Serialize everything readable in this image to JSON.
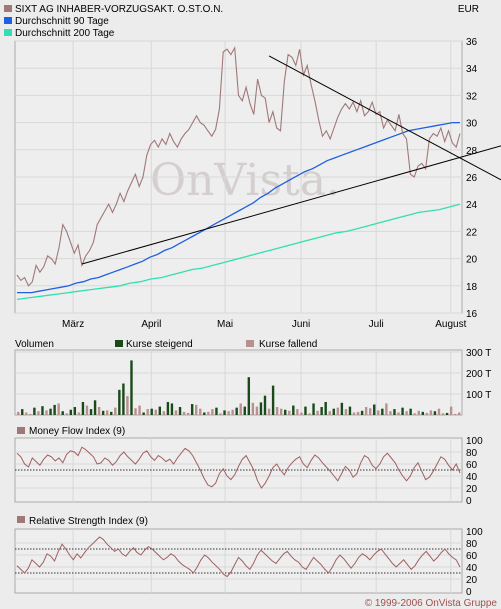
{
  "header": {
    "currency": "EUR",
    "legend": [
      {
        "label": "SIXT AG INHABER-VORZUGSAKT. O.ST.O.N.",
        "color": "#a07878"
      },
      {
        "label": "Durchschnitt 90 Tage",
        "color": "#1f5fe0"
      },
      {
        "label": "Durchschnitt 200 Tage",
        "color": "#30e0b0"
      }
    ]
  },
  "watermark": "OnVista.",
  "copyright": "© 1999-2006 OnVista Gruppe",
  "colors": {
    "price": "#a07878",
    "ma90": "#1f5fe0",
    "ma200": "#30e0b0",
    "vol_up": "#1a4a1a",
    "vol_down": "#b89090",
    "indicator": "#a06060",
    "trend": "#000000"
  },
  "chart_data": [
    {
      "type": "line",
      "title": "SIXT AG INHABER-VORZUGSAKT. O.ST.O.N.",
      "ylabel": "EUR",
      "ylim": [
        16,
        36
      ],
      "yticks": [
        16,
        18,
        20,
        22,
        24,
        26,
        28,
        30,
        32,
        34,
        36
      ],
      "xticks": [
        "März",
        "April",
        "Mai",
        "Juni",
        "Juli",
        "August"
      ],
      "series": [
        {
          "name": "SIXT AG INHABER-VORZUGSAKT. O.ST.O.N.",
          "values": [
            18.8,
            18.4,
            18.6,
            18.0,
            18.3,
            19.5,
            19.0,
            19.4,
            20.2,
            20.0,
            19.6,
            20.8,
            22.5,
            22.0,
            21.2,
            20.4,
            21.0,
            19.5,
            20.2,
            20.6,
            21.2,
            22.5,
            23.0,
            23.5,
            24.0,
            23.4,
            24.0,
            24.8,
            24.2,
            25.0,
            25.6,
            26.2,
            25.3,
            26.0,
            27.6,
            28.4,
            28.7,
            28.2,
            28.8,
            28.4,
            29.2,
            28.6,
            28.2,
            28.8,
            29.2,
            29.5,
            30.0,
            30.5,
            30.0,
            29.8,
            29.4,
            29.0,
            29.5,
            31.0,
            35.2,
            35.4,
            35.0,
            35.5,
            32.0,
            31.6,
            32.6,
            31.4,
            30.6,
            33.2,
            32.0,
            31.8,
            30.0,
            30.8,
            29.6,
            29.4,
            33.0,
            35.0,
            34.8,
            34.2,
            35.4,
            33.5,
            34.2,
            32.8,
            31.6,
            30.2,
            29.0,
            29.4,
            28.8,
            29.6,
            30.4,
            31.0,
            31.4,
            31.0,
            31.5,
            30.8,
            31.6,
            30.5,
            30.8,
            31.5,
            30.6,
            30.8,
            29.6,
            30.2,
            29.8,
            29.4,
            30.6,
            29.2,
            28.8,
            26.2,
            26.0,
            26.8,
            27.0,
            26.6,
            28.8,
            29.2,
            29.0,
            29.6,
            28.6,
            29.4,
            28.5,
            28.2,
            29.2
          ]
        },
        {
          "name": "Durchschnitt 90 Tage",
          "values": [
            17.5,
            17.5,
            17.5,
            17.6,
            17.7,
            17.8,
            17.9,
            18.0,
            18.2,
            18.3,
            18.5,
            18.6,
            18.8,
            19.0,
            19.2,
            19.4,
            19.6,
            19.8,
            20.1,
            20.3,
            20.6,
            20.8,
            21.1,
            21.4,
            21.7,
            22.0,
            22.3,
            22.6,
            22.9,
            23.2,
            23.5,
            23.8,
            24.1,
            24.5,
            24.8,
            25.2,
            25.5,
            25.8,
            26.1,
            26.4,
            26.6,
            26.9,
            27.2,
            27.4,
            27.6,
            27.8,
            28.0,
            28.2,
            28.4,
            28.6,
            28.8,
            29.0,
            29.2,
            29.4,
            29.5,
            29.6,
            29.7,
            29.8,
            29.9,
            30.0,
            30.0
          ]
        },
        {
          "name": "Durchschnitt 200 Tage",
          "values": [
            17.0,
            17.1,
            17.2,
            17.3,
            17.4,
            17.5,
            17.6,
            17.7,
            17.8,
            17.9,
            18.0,
            18.2,
            18.3,
            18.5,
            18.6,
            18.8,
            19.0,
            19.2,
            19.3,
            19.5,
            19.7,
            19.9,
            20.1,
            20.3,
            20.5,
            20.7,
            20.9,
            21.1,
            21.3,
            21.5,
            21.7,
            21.9,
            22.0,
            22.2,
            22.4,
            22.6,
            22.8,
            23.0,
            23.2,
            23.4,
            23.5,
            23.6,
            23.8,
            24.0
          ]
        }
      ],
      "trendlines": [
        {
          "from": {
            "x_index": 17,
            "y": 19.6
          },
          "to": {
            "x_index": 118,
            "y": 27.6
          }
        },
        {
          "from": {
            "x_index": 66,
            "y": 34.9
          },
          "to": {
            "x_index": 118,
            "y": 27.1
          }
        }
      ]
    },
    {
      "type": "bar",
      "title": "Volumen",
      "legend": [
        "Kurse steigend",
        "Kurse fallend"
      ],
      "yticks": [
        "100 T",
        "200 T",
        "300 T"
      ],
      "ylim": [
        0,
        300000
      ],
      "values": [
        15000,
        28000,
        12000,
        5000,
        35000,
        18000,
        42000,
        22000,
        30000,
        48000,
        55000,
        18000,
        8000,
        25000,
        38000,
        12000,
        62000,
        45000,
        28000,
        70000,
        38000,
        20000,
        22000,
        15000,
        35000,
        120000,
        150000,
        90000,
        260000,
        32000,
        45000,
        12000,
        28000,
        30000,
        25000,
        40000,
        18000,
        62000,
        55000,
        22000,
        38000,
        15000,
        10000,
        52000,
        48000,
        30000,
        12000,
        15000,
        28000,
        35000,
        8000,
        22000,
        18000,
        25000,
        35000,
        55000,
        40000,
        180000,
        58000,
        40000,
        60000,
        92000,
        30000,
        140000,
        38000,
        30000,
        25000,
        20000,
        45000,
        28000,
        12000,
        40000,
        8000,
        55000,
        20000,
        38000,
        62000,
        18000,
        30000,
        35000,
        58000,
        28000,
        40000,
        12000,
        15000,
        20000,
        38000,
        32000,
        50000,
        22000,
        30000,
        55000,
        18000,
        28000,
        12000,
        35000,
        18000,
        30000,
        8000,
        20000,
        15000,
        10000,
        22000,
        18000,
        30000,
        8000,
        10000,
        40000,
        5000,
        12000
      ],
      "rising": [
        0,
        1,
        0,
        0,
        1,
        0,
        1,
        0,
        1,
        1,
        0,
        1,
        0,
        1,
        1,
        0,
        1,
        0,
        1,
        1,
        0,
        1,
        0,
        1,
        0,
        1,
        1,
        0,
        1,
        0,
        0,
        1,
        0,
        1,
        0,
        1,
        0,
        1,
        1,
        0,
        1,
        0,
        0,
        1,
        0,
        0,
        1,
        0,
        0,
        1,
        0,
        1,
        0,
        0,
        1,
        0,
        1,
        1,
        0,
        0,
        1,
        1,
        0,
        1,
        0,
        0,
        1,
        0,
        1,
        0,
        0,
        1,
        0,
        1,
        0,
        1,
        1,
        0,
        1,
        0,
        1,
        0,
        1,
        0,
        0,
        1,
        0,
        0,
        1,
        0,
        1,
        0,
        0,
        1,
        0,
        1,
        0,
        1,
        0,
        0,
        1,
        0,
        0,
        1,
        0,
        0,
        1,
        0,
        0,
        0
      ]
    },
    {
      "type": "line",
      "title": "Money Flow Index (9)",
      "ylim": [
        0,
        100
      ],
      "yticks": [
        0,
        20,
        40,
        60,
        80,
        100
      ],
      "reference_lines": [
        50
      ],
      "series": [
        {
          "name": "Money Flow Index (9)",
          "values": [
            78,
            72,
            60,
            55,
            70,
            64,
            58,
            68,
            75,
            72,
            65,
            70,
            62,
            76,
            82,
            80,
            74,
            88,
            84,
            78,
            72,
            60,
            62,
            70,
            66,
            58,
            64,
            74,
            80,
            72,
            66,
            60,
            68,
            78,
            82,
            72,
            66,
            74,
            70,
            64,
            68,
            60,
            70,
            78,
            86,
            82,
            74,
            62,
            50,
            36,
            25,
            22,
            28,
            44,
            52,
            40,
            34,
            42,
            56,
            68,
            74,
            62,
            50,
            32,
            20,
            28,
            40,
            54,
            60,
            50,
            42,
            54,
            62,
            68,
            72,
            60,
            54,
            66,
            75,
            70,
            62,
            55,
            48,
            40,
            32,
            44,
            56,
            50,
            38,
            44,
            62,
            74,
            70,
            58,
            52,
            60,
            72,
            78,
            70,
            62,
            50,
            40,
            32,
            40,
            54,
            62,
            48,
            34,
            38,
            48,
            60,
            72,
            68,
            58,
            50,
            60,
            45
          ]
        }
      ]
    },
    {
      "type": "line",
      "title": "Relative Strength Index (9)",
      "ylim": [
        0,
        100
      ],
      "yticks": [
        0,
        20,
        40,
        60,
        80,
        100
      ],
      "reference_lines": [
        30,
        70
      ],
      "series": [
        {
          "name": "Relative Strength Index (9)",
          "values": [
            42,
            36,
            30,
            38,
            52,
            46,
            40,
            48,
            62,
            58,
            50,
            66,
            78,
            70,
            60,
            52,
            62,
            55,
            64,
            72,
            78,
            84,
            90,
            86,
            78,
            72,
            66,
            70,
            62,
            58,
            66,
            72,
            64,
            60,
            68,
            74,
            70,
            64,
            58,
            52,
            56,
            62,
            58,
            50,
            44,
            40,
            36,
            30,
            40,
            52,
            60,
            55,
            48,
            42,
            36,
            28,
            24,
            32,
            44,
            56,
            50,
            42,
            36,
            46,
            60,
            68,
            62,
            56,
            50,
            46,
            54,
            62,
            66,
            58,
            52,
            48,
            40,
            36,
            46,
            56,
            50,
            44,
            36,
            30,
            40,
            52,
            60,
            54,
            46,
            38,
            46,
            56,
            62,
            58,
            52,
            60,
            66,
            70,
            62,
            54,
            46,
            40,
            46,
            52,
            44,
            36,
            42,
            52,
            60,
            66,
            58,
            50,
            56,
            64,
            70,
            62,
            56,
            52,
            40
          ]
        }
      ]
    }
  ]
}
